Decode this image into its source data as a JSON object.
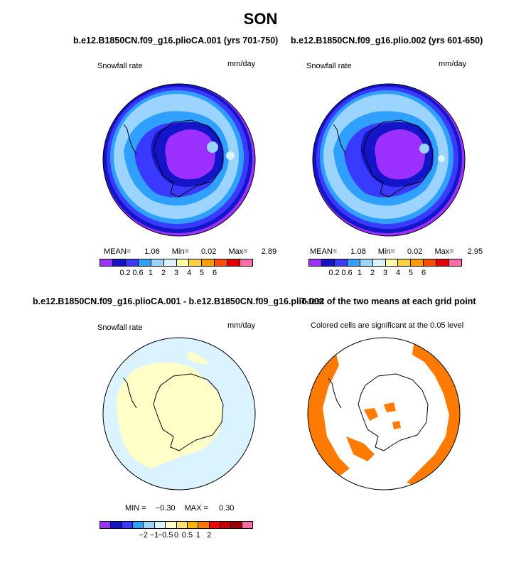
{
  "figure": {
    "title": "SON"
  },
  "panels": [
    {
      "title": "b.e12.B1850CN.f09_g16.plioCA.001 (yrs 701-750)",
      "left_label": "Snowfall rate",
      "right_label": "mm/day",
      "stats": {
        "mean_label": "MEAN=",
        "mean": "1.06",
        "min_label": "Min=",
        "min": "0.02",
        "max_label": "Max=",
        "max": "2.89"
      }
    },
    {
      "title": "b.e12.B1850CN.f09_g16.plio.002 (yrs 601-650)",
      "left_label": "Snowfall rate",
      "right_label": "mm/day",
      "stats": {
        "mean_label": "MEAN=",
        "mean": "1.08",
        "min_label": "Min=",
        "min": "0.02",
        "max_label": "Max=",
        "max": "2.95"
      }
    },
    {
      "title": "b.e12.B1850CN.f09_g16.plioCA.001 - b.e12.B1850CN.f09_g16.plio.002",
      "left_label": "Snowfall rate",
      "right_label": "mm/day",
      "stats": {
        "min_label": "MIN =",
        "min": "−0.30",
        "max_label": "MAX =",
        "max": "0.30"
      }
    },
    {
      "title": "T-test of the two means at each grid point",
      "subtitle": "Colored cells are significant at the 0.05 level"
    }
  ],
  "chart_data": [
    {
      "type": "heatmap",
      "title": "b.e12.B1850CN.f09_g16.plioCA.001 (yrs 701-750)",
      "variable": "Snowfall rate",
      "units": "mm/day",
      "season": "SON",
      "projection": "south polar stereographic",
      "mean": 1.06,
      "min": 0.02,
      "max": 2.89,
      "colorbar_levels": [
        0.2,
        0.6,
        1,
        2,
        3,
        4,
        5,
        6
      ],
      "colorbar_labels": [
        "0.2",
        "0.6",
        "1",
        "2",
        "3",
        "4",
        "5",
        "6"
      ],
      "colors": [
        "#9b30ff",
        "#1414c8",
        "#3a3aff",
        "#2fa0ff",
        "#9ad4ff",
        "#daf3ff",
        "#ffffa8",
        "#ffd23c",
        "#ff9d00",
        "#ff4e00",
        "#e60000",
        "#ff6aa8"
      ]
    },
    {
      "type": "heatmap",
      "title": "b.e12.B1850CN.f09_g16.plio.002 (yrs 601-650)",
      "variable": "Snowfall rate",
      "units": "mm/day",
      "season": "SON",
      "projection": "south polar stereographic",
      "mean": 1.08,
      "min": 0.02,
      "max": 2.95,
      "colorbar_levels": [
        0.2,
        0.6,
        1,
        2,
        3,
        4,
        5,
        6
      ],
      "colorbar_labels": [
        "0.2",
        "0.6",
        "1",
        "2",
        "3",
        "4",
        "5",
        "6"
      ],
      "colors": [
        "#9b30ff",
        "#1414c8",
        "#3a3aff",
        "#2fa0ff",
        "#9ad4ff",
        "#daf3ff",
        "#ffffa8",
        "#ffd23c",
        "#ff9d00",
        "#ff4e00",
        "#e60000",
        "#ff6aa8"
      ]
    },
    {
      "type": "heatmap",
      "title": "b.e12.B1850CN.f09_g16.plioCA.001 - b.e12.B1850CN.f09_g16.plio.002",
      "variable": "Snowfall rate",
      "units": "mm/day",
      "season": "SON",
      "projection": "south polar stereographic",
      "min": -0.3,
      "max": 0.3,
      "colorbar_levels": [
        -2,
        -1,
        -0.5,
        0,
        0.5,
        1,
        2
      ],
      "colorbar_labels": [
        "−2",
        "−1",
        "−0.5",
        "0",
        "0.5",
        "1",
        "2"
      ],
      "colors": [
        "#9b30ff",
        "#1414c8",
        "#3a3aff",
        "#2fa0ff",
        "#9ad4ff",
        "#daf3ff",
        "#ffffc8",
        "#ffe17a",
        "#ffb400",
        "#ff7800",
        "#ff0000",
        "#c80000",
        "#9b0000",
        "#ff6aa8"
      ]
    },
    {
      "type": "heatmap",
      "title": "T-test of the two means at each grid point",
      "annotation": "Colored cells are significant at the 0.05 level",
      "significance_level": 0.05,
      "significant_color": "#ff7a00"
    }
  ]
}
